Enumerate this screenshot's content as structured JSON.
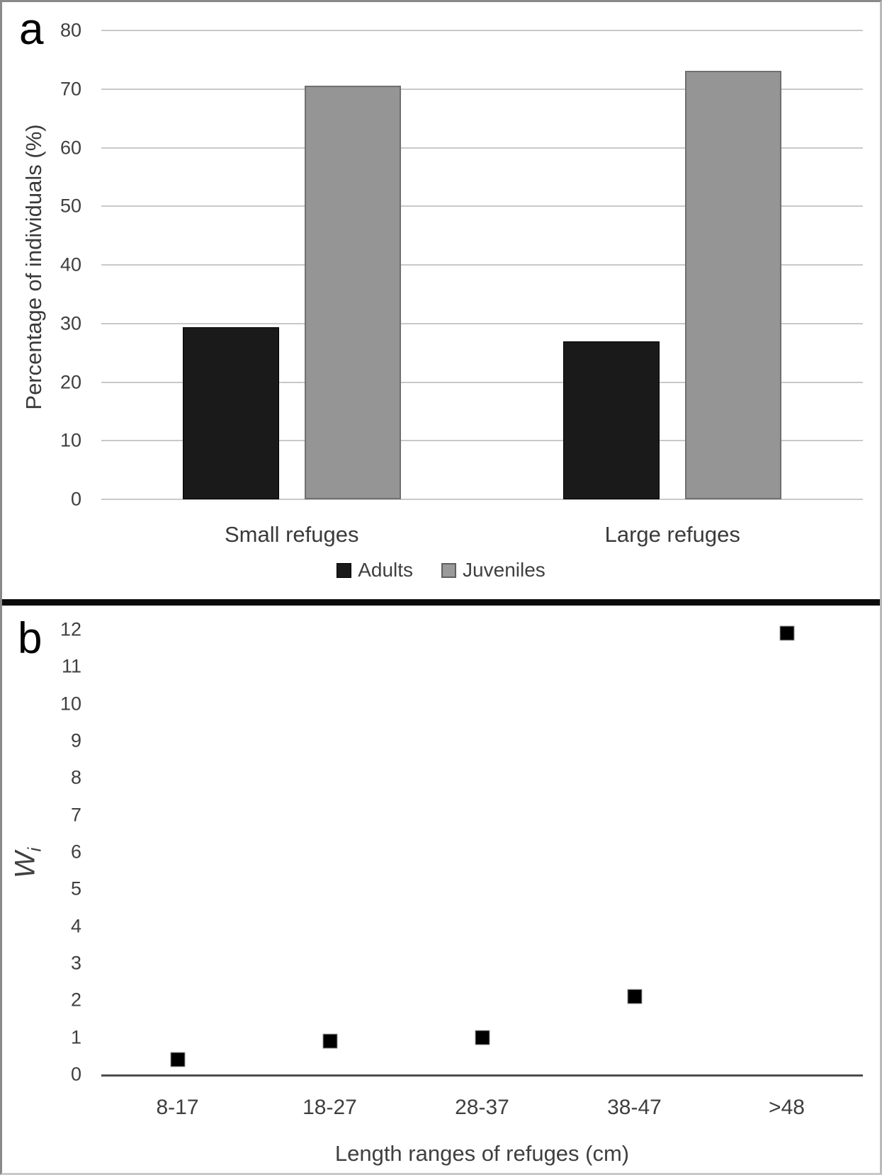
{
  "figure": {
    "panel_a_label": "a",
    "panel_b_label": "b"
  },
  "chart_data": [
    {
      "panel": "a",
      "type": "bar",
      "categories": [
        "Small refuges",
        "Large refuges"
      ],
      "series": [
        {
          "name": "Adults",
          "color": "#1a1a1a",
          "values": [
            29.4,
            26.9
          ]
        },
        {
          "name": "Juveniles",
          "color": "#959595",
          "values": [
            70.6,
            73.1
          ]
        }
      ],
      "ylabel": "Percentage of individuals (%)",
      "ylim": [
        0,
        80
      ],
      "yticks": [
        0,
        10,
        20,
        30,
        40,
        50,
        60,
        70,
        80
      ],
      "grid": true,
      "legend_position": "bottom"
    },
    {
      "panel": "b",
      "type": "scatter",
      "categories": [
        "8-17",
        "18-27",
        "28-37",
        "38-47",
        ">48"
      ],
      "values": [
        0.4,
        0.9,
        1.0,
        2.1,
        11.9
      ],
      "xlabel": "Length ranges of refuges (cm)",
      "ylabel_main": "W",
      "ylabel_sub": "i",
      "ylim": [
        0,
        12
      ],
      "yticks": [
        0,
        1,
        2,
        3,
        4,
        5,
        6,
        7,
        8,
        9,
        10,
        11,
        12
      ],
      "grid": false,
      "marker": "square",
      "marker_color": "#000000"
    }
  ],
  "colors": {
    "adults": "#1a1a1a",
    "juveniles_fill": "#959595",
    "juveniles_border": "#6f6f6f",
    "gridline": "#c9c9c9",
    "axis_text": "#3f3f3f",
    "axis_line": "#4d4d4d",
    "divider": "#0b0b0b"
  }
}
